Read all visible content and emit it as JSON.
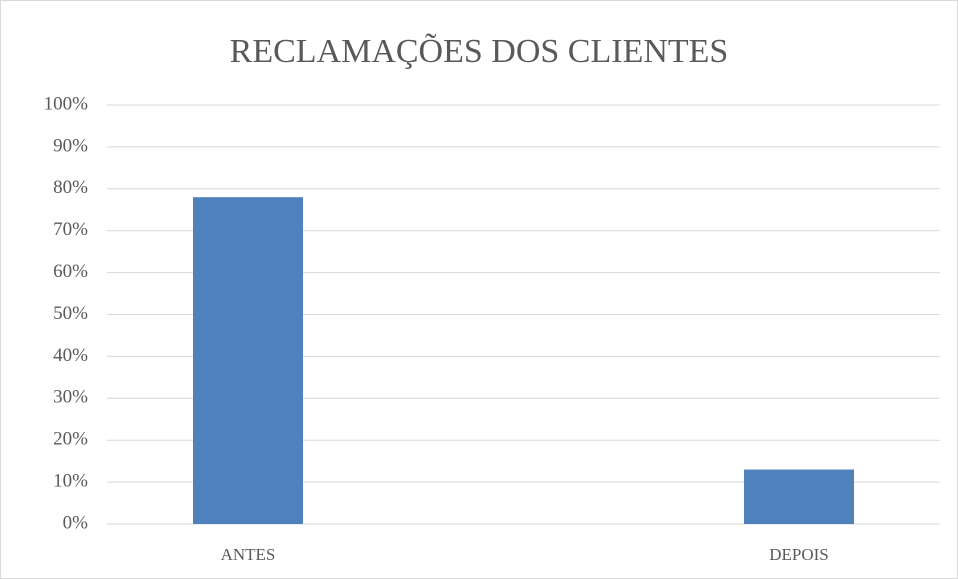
{
  "chart_data": {
    "type": "bar",
    "title": "RECLAMAÇÕES DOS CLIENTES",
    "categories": [
      "ANTES",
      "DEPOIS"
    ],
    "values": [
      78,
      13
    ],
    "color": "#4f81bd",
    "ylim": [
      0,
      100
    ],
    "yticks": [
      {
        "value": 0,
        "label": "0%"
      },
      {
        "value": 10,
        "label": "10%"
      },
      {
        "value": 20,
        "label": "20%"
      },
      {
        "value": 30,
        "label": "30%"
      },
      {
        "value": 40,
        "label": "40%"
      },
      {
        "value": 50,
        "label": "50%"
      },
      {
        "value": 60,
        "label": "60%"
      },
      {
        "value": 70,
        "label": "70%"
      },
      {
        "value": 80,
        "label": "80%"
      },
      {
        "value": 90,
        "label": "90%"
      },
      {
        "value": 100,
        "label": "100%"
      }
    ],
    "grid": true
  }
}
